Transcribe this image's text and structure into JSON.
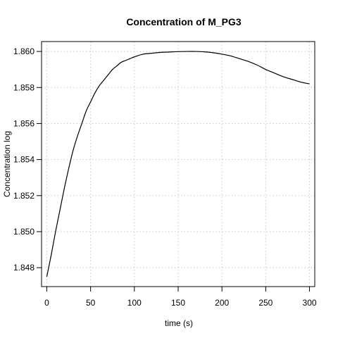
{
  "chart_data": {
    "type": "line",
    "title": "Concentration of M_PG3",
    "xlabel": "time (s)",
    "ylabel": "Concentration log",
    "xlim": [
      -6,
      306
    ],
    "ylim": [
      1.84695,
      1.86055
    ],
    "xticks": [
      0,
      50,
      100,
      150,
      200,
      250,
      300
    ],
    "yticks": [
      1.848,
      1.85,
      1.852,
      1.854,
      1.856,
      1.858,
      1.86
    ],
    "ytick_labels": [
      "1.848",
      "1.850",
      "1.852",
      "1.854",
      "1.856",
      "1.858",
      "1.860"
    ],
    "grid": true,
    "series": [
      {
        "x": [
          0,
          5,
          10,
          15,
          20,
          25,
          30,
          35,
          40,
          45,
          50,
          55,
          60,
          65,
          70,
          75,
          80,
          85,
          90,
          95,
          100,
          110,
          120,
          130,
          140,
          150,
          160,
          170,
          180,
          190,
          200,
          210,
          220,
          230,
          240,
          250,
          260,
          270,
          280,
          290,
          300
        ],
        "values": [
          1.8475,
          1.8487,
          1.85,
          1.8512,
          1.8524,
          1.8535,
          1.8545,
          1.8553,
          1.856,
          1.8567,
          1.8572,
          1.8577,
          1.8581,
          1.8584,
          1.8587,
          1.859,
          1.8592,
          1.8594,
          1.8595,
          1.8596,
          1.8597,
          1.85985,
          1.8599,
          1.85995,
          1.85997,
          1.85999,
          1.86,
          1.86,
          1.85998,
          1.85993,
          1.85985,
          1.85975,
          1.8596,
          1.85945,
          1.85925,
          1.859,
          1.8588,
          1.8586,
          1.85845,
          1.8583,
          1.8582
        ]
      }
    ]
  }
}
